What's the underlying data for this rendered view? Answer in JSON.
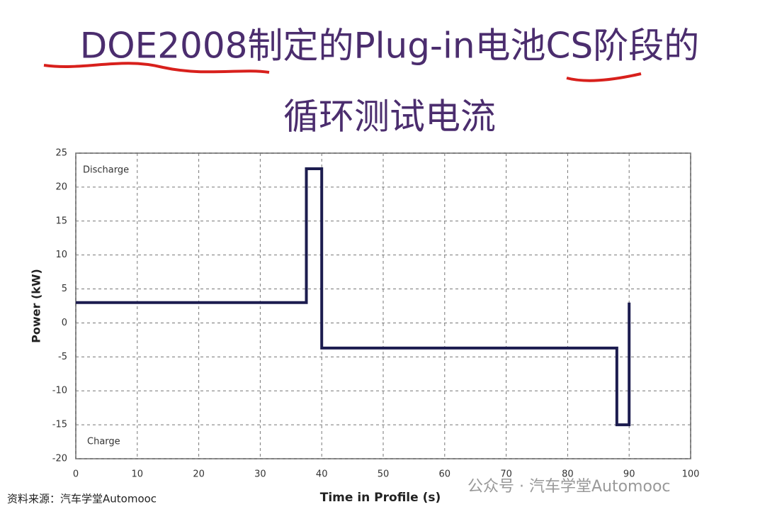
{
  "chart_data": {
    "type": "line",
    "title": [
      "DOE2008制定的Plug-in电池CS阶段的",
      "循环测试电流"
    ],
    "x_label": "Time in Profile (s)",
    "y_label": "Power (kW)",
    "annotations": [
      "Discharge",
      "Charge"
    ],
    "series": [
      {
        "color": "#1c1c4f",
        "x": [
          0,
          37.5,
          37.5,
          40,
          40,
          88,
          88,
          90,
          90
        ],
        "values": [
          3,
          3,
          22.7,
          22.7,
          -3.7,
          -3.7,
          -15,
          -15,
          3
        ]
      }
    ],
    "xlim": [
      0,
      100
    ],
    "xticks": [
      0,
      10,
      20,
      30,
      40,
      50,
      60,
      70,
      80,
      90,
      100
    ],
    "ylim": [
      -20,
      25
    ],
    "yticks": [
      -20,
      -15,
      -10,
      -5,
      0,
      5,
      10,
      15,
      20,
      25
    ],
    "grid": true,
    "source": "资料来源：汽车学堂Automooc",
    "watermark": "公众号 · 汽车学堂Automooc"
  }
}
